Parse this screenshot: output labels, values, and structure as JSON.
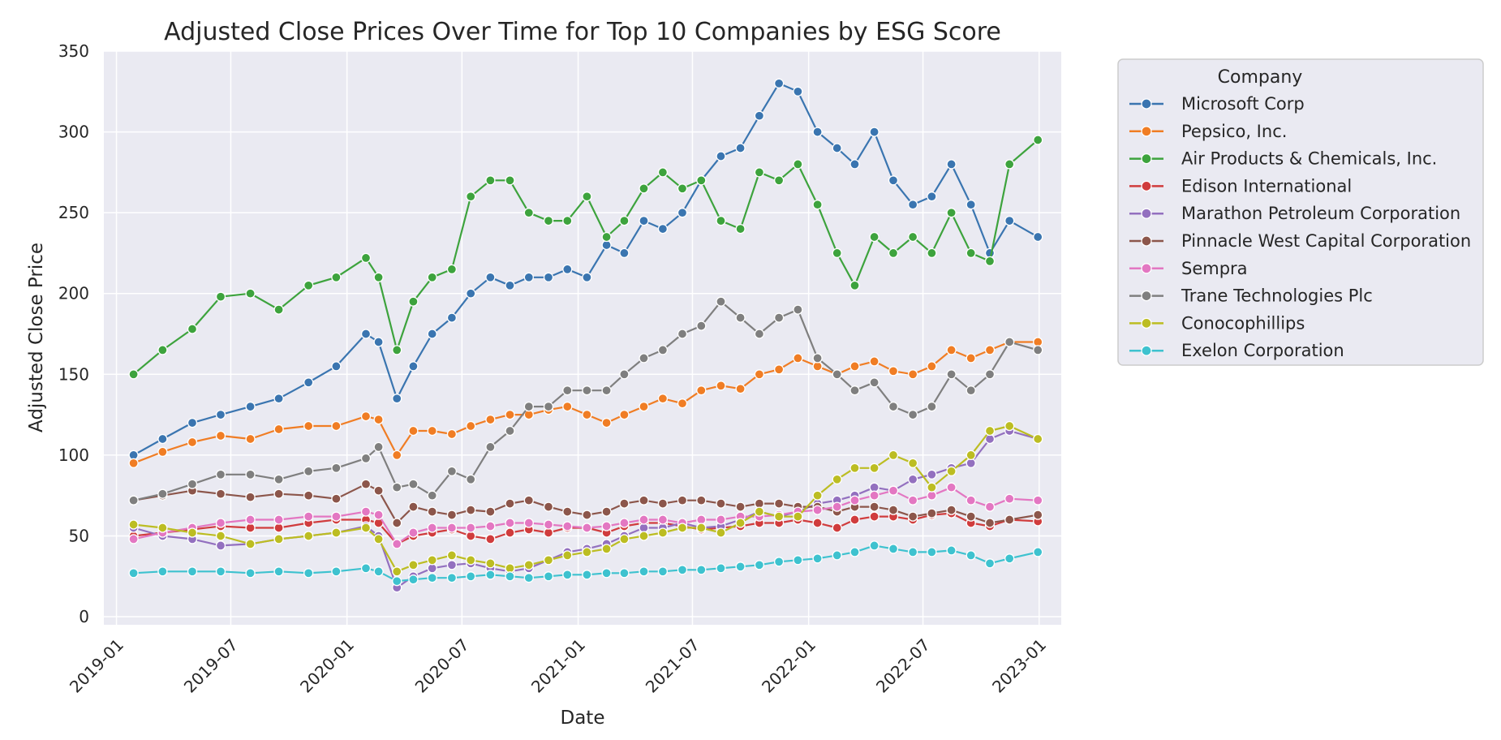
{
  "chart_data": {
    "type": "line",
    "title": "Adjusted Close Prices Over Time for Top 10 Companies by ESG Score",
    "xlabel": "Date",
    "ylabel": "Adjusted Close Price",
    "x_tick_labels": [
      "2019-01",
      "2019-07",
      "2020-01",
      "2020-07",
      "2021-01",
      "2021-07",
      "2022-01",
      "2022-07",
      "2023-01"
    ],
    "y_tick_labels": [
      "0",
      "50",
      "100",
      "150",
      "200",
      "250",
      "300",
      "350"
    ],
    "xlim": [
      "2018-12-12",
      "2023-02-05"
    ],
    "ylim": [
      -5,
      350
    ],
    "grid": true,
    "legend_title": "Company",
    "legend_position": "upper right, outside plot",
    "x": [
      "2019-01-28",
      "2019-03-15",
      "2019-05-01",
      "2019-06-15",
      "2019-08-01",
      "2019-09-15",
      "2019-11-01",
      "2019-12-15",
      "2020-01-31",
      "2020-02-20",
      "2020-03-20",
      "2020-04-15",
      "2020-05-15",
      "2020-06-15",
      "2020-07-15",
      "2020-08-15",
      "2020-09-15",
      "2020-10-15",
      "2020-11-15",
      "2020-12-15",
      "2021-01-15",
      "2021-02-15",
      "2021-03-15",
      "2021-04-15",
      "2021-05-15",
      "2021-06-15",
      "2021-07-15",
      "2021-08-15",
      "2021-09-15",
      "2021-10-15",
      "2021-11-15",
      "2021-12-15",
      "2022-01-15",
      "2022-02-15",
      "2022-03-15",
      "2022-04-15",
      "2022-05-15",
      "2022-06-15",
      "2022-07-15",
      "2022-08-15",
      "2022-09-15",
      "2022-10-15",
      "2022-11-15",
      "2022-12-30"
    ],
    "series": [
      {
        "name": "Microsoft Corp",
        "color": "#3a75b0",
        "values": [
          100,
          110,
          120,
          125,
          130,
          135,
          145,
          155,
          175,
          170,
          135,
          155,
          175,
          185,
          200,
          210,
          205,
          210,
          210,
          215,
          210,
          230,
          225,
          245,
          240,
          250,
          270,
          285,
          290,
          310,
          330,
          325,
          300,
          290,
          280,
          300,
          270,
          255,
          260,
          280,
          255,
          225,
          245,
          235
        ]
      },
      {
        "name": "Pepsico, Inc.",
        "color": "#f07d24",
        "values": [
          95,
          102,
          108,
          112,
          110,
          116,
          118,
          118,
          124,
          122,
          100,
          115,
          115,
          113,
          118,
          122,
          125,
          125,
          128,
          130,
          125,
          120,
          125,
          130,
          135,
          132,
          140,
          143,
          141,
          150,
          153,
          160,
          155,
          150,
          155,
          158,
          152,
          150,
          155,
          165,
          160,
          165,
          170,
          170
        ]
      },
      {
        "name": "Air Products & Chemicals, Inc.",
        "color": "#3da33d",
        "values": [
          150,
          165,
          178,
          198,
          200,
          190,
          205,
          210,
          222,
          210,
          165,
          195,
          210,
          215,
          260,
          270,
          270,
          250,
          245,
          245,
          260,
          235,
          245,
          265,
          275,
          265,
          270,
          245,
          240,
          275,
          270,
          280,
          255,
          225,
          205,
          235,
          225,
          235,
          225,
          250,
          225,
          220,
          280,
          295
        ]
      },
      {
        "name": "Edison International",
        "color": "#d03c3d",
        "values": [
          50,
          52,
          54,
          56,
          55,
          55,
          58,
          60,
          60,
          58,
          45,
          50,
          52,
          54,
          50,
          48,
          52,
          54,
          52,
          55,
          55,
          52,
          56,
          58,
          58,
          56,
          54,
          55,
          56,
          58,
          58,
          60,
          58,
          55,
          60,
          62,
          62,
          60,
          63,
          64,
          58,
          56,
          60,
          59
        ]
      },
      {
        "name": "Marathon Petroleum Corporation",
        "color": "#9370bf",
        "values": [
          55,
          50,
          48,
          44,
          45,
          48,
          50,
          52,
          56,
          50,
          18,
          25,
          30,
          32,
          33,
          30,
          28,
          30,
          35,
          40,
          42,
          45,
          50,
          55,
          55,
          58,
          55,
          56,
          60,
          65,
          62,
          65,
          70,
          72,
          75,
          80,
          78,
          85,
          88,
          92,
          95,
          110,
          115,
          110
        ]
      },
      {
        "name": "Pinnacle West Capital Corporation",
        "color": "#8c564b",
        "values": [
          72,
          75,
          78,
          76,
          74,
          76,
          75,
          73,
          82,
          78,
          58,
          68,
          65,
          63,
          66,
          65,
          70,
          72,
          68,
          65,
          63,
          65,
          70,
          72,
          70,
          72,
          72,
          70,
          68,
          70,
          70,
          68,
          68,
          65,
          68,
          68,
          66,
          62,
          64,
          66,
          62,
          58,
          60,
          63
        ]
      },
      {
        "name": "Sempra",
        "color": "#e377c2",
        "values": [
          48,
          52,
          55,
          58,
          60,
          60,
          62,
          62,
          65,
          63,
          45,
          52,
          55,
          55,
          55,
          56,
          58,
          58,
          57,
          56,
          55,
          56,
          58,
          60,
          60,
          58,
          60,
          60,
          62,
          62,
          63,
          65,
          66,
          68,
          72,
          75,
          78,
          72,
          75,
          80,
          72,
          68,
          73,
          72
        ]
      },
      {
        "name": "Trane Technologies Plc",
        "color": "#7f7f7f",
        "values": [
          72,
          76,
          82,
          88,
          88,
          85,
          90,
          92,
          98,
          105,
          80,
          82,
          75,
          90,
          85,
          105,
          115,
          130,
          130,
          140,
          140,
          140,
          150,
          160,
          165,
          175,
          180,
          195,
          185,
          175,
          185,
          190,
          160,
          150,
          140,
          145,
          130,
          125,
          130,
          150,
          140,
          150,
          170,
          165
        ]
      },
      {
        "name": "Conocophillips",
        "color": "#bcbd22",
        "values": [
          57,
          55,
          52,
          50,
          45,
          48,
          50,
          52,
          55,
          48,
          28,
          32,
          35,
          38,
          35,
          33,
          30,
          32,
          35,
          38,
          40,
          42,
          48,
          50,
          52,
          55,
          55,
          52,
          58,
          65,
          62,
          62,
          75,
          85,
          92,
          92,
          100,
          95,
          80,
          90,
          100,
          115,
          118,
          110
        ]
      },
      {
        "name": "Exelon Corporation",
        "color": "#3ec2cf",
        "values": [
          27,
          28,
          28,
          28,
          27,
          28,
          27,
          28,
          30,
          28,
          22,
          23,
          24,
          24,
          25,
          26,
          25,
          24,
          25,
          26,
          26,
          27,
          27,
          28,
          28,
          29,
          29,
          30,
          31,
          32,
          34,
          35,
          36,
          38,
          40,
          44,
          42,
          40,
          40,
          41,
          38,
          33,
          36,
          40
        ]
      }
    ]
  }
}
